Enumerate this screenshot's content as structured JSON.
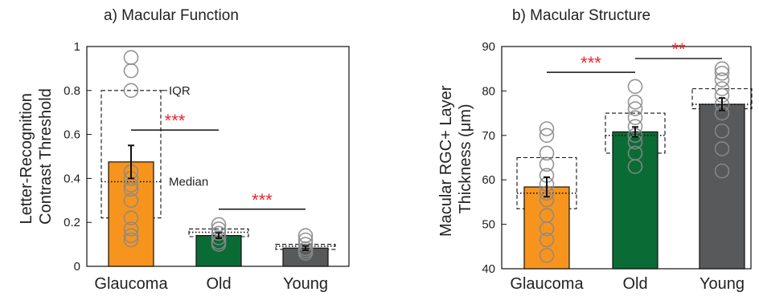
{
  "chart_data": [
    {
      "type": "bar",
      "title": "a) Macular Function",
      "ylabel_lines": [
        "Letter-Recognition",
        "Contrast Threshold"
      ],
      "ylim": [
        0,
        1
      ],
      "yticks": [
        0,
        0.2,
        0.4,
        0.6,
        0.8,
        1
      ],
      "ytick_labels": [
        "0",
        "0.2",
        "0.4",
        "0.6",
        "0.8",
        "1"
      ],
      "categories": [
        "Glaucoma",
        "Old",
        "Young"
      ],
      "values": [
        0.475,
        0.14,
        0.083
      ],
      "errors": [
        0.075,
        0.012,
        0.01
      ],
      "median": [
        0.385,
        0.155,
        0.092
      ],
      "iqr": [
        [
          0.22,
          0.8
        ],
        [
          0.135,
          0.17
        ],
        [
          0.077,
          0.1
        ]
      ],
      "bar_colors": [
        "#f7941d",
        "#0b6b35",
        "#58595b"
      ],
      "points": [
        [
          0.95,
          0.89,
          0.8,
          0.43,
          0.4,
          0.37,
          0.35,
          0.3,
          0.22,
          0.17,
          0.14,
          0.12
        ],
        [
          0.19,
          0.17,
          0.15,
          0.13,
          0.11,
          0.1
        ],
        [
          0.14,
          0.12,
          0.1,
          0.08,
          0.07,
          0.06
        ]
      ],
      "annotations": {
        "iqr_label": "IQR",
        "median_label": "Median"
      },
      "significance": [
        {
          "from": 0,
          "to": 1,
          "y": 0.62,
          "label": "***"
        },
        {
          "from": 1,
          "to": 2,
          "y": 0.26,
          "label": "***"
        }
      ],
      "grid": false
    },
    {
      "type": "bar",
      "title": "b) Macular Structure",
      "ylabel_lines": [
        "Macular RGC+ Layer",
        "Thickness (μm)"
      ],
      "ylim": [
        40,
        90
      ],
      "yticks": [
        40,
        50,
        60,
        70,
        80,
        90
      ],
      "ytick_labels": [
        "40",
        "50",
        "60",
        "70",
        "80",
        "90"
      ],
      "categories": [
        "Glaucoma",
        "Old",
        "Young"
      ],
      "values": [
        58.4,
        70.8,
        77.0
      ],
      "errors": [
        2.2,
        1.1,
        1.4
      ],
      "median": [
        57.0,
        70.0,
        77.0
      ],
      "iqr": [
        [
          53.5,
          65.0
        ],
        [
          66.0,
          75.0
        ],
        [
          76.0,
          80.5
        ]
      ],
      "bar_colors": [
        "#f7941d",
        "#0b6b35",
        "#58595b"
      ],
      "points": [
        [
          71.5,
          70.0,
          66.0,
          63.5,
          61.0,
          59.0,
          57.0,
          55.5,
          52.0,
          49.0,
          46.5,
          43.0
        ],
        [
          81.0,
          77.5,
          76.0,
          74.0,
          72.0,
          70.0,
          68.5,
          66.0,
          63.0
        ],
        [
          85.0,
          84.0,
          82.5,
          80.5,
          79.0,
          77.0,
          75.0,
          71.0,
          67.0,
          62.0
        ]
      ],
      "significance": [
        {
          "from": 0,
          "to": 1,
          "y": 84.2,
          "label": "***"
        },
        {
          "from": 1,
          "to": 2,
          "y": 87.3,
          "label": "**"
        }
      ],
      "grid": false
    }
  ]
}
